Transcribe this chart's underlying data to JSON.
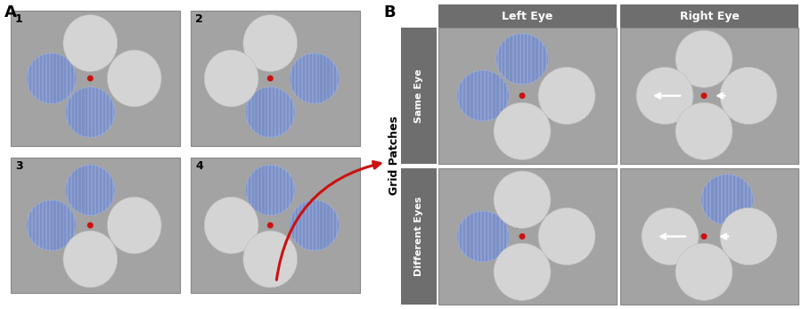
{
  "bg_color": "#a3a3a3",
  "panel_bg": "#a3a3a3",
  "grid_fill": "#8b9fd4",
  "grid_stripe": "#7085b8",
  "white_fill": "#d4d4d4",
  "fixation_color": "#cc1111",
  "header_bg": "#6e6e6e",
  "row_label_bg": "#6e6e6e",
  "arrow_color": "#cc1111",
  "white_arrow_color": "#ffffff",
  "col_headers": [
    "Left Eye",
    "Right Eye"
  ],
  "row_headers": [
    "Same Eye",
    "Different Eyes"
  ],
  "figure_bg": "#ffffff",
  "panel_edge": "#888888"
}
